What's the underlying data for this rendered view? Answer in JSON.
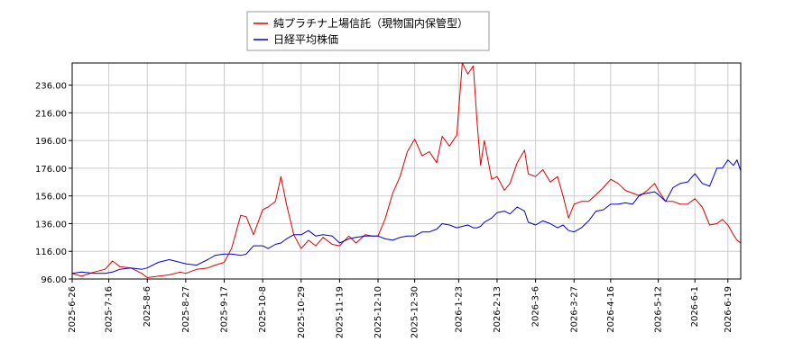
{
  "chart_data": {
    "type": "line",
    "title": "",
    "xlabel": "",
    "ylabel": "",
    "grid": true,
    "legend_position": "top-center",
    "ylim": [
      96,
      252
    ],
    "y_ticks": [
      "96.00",
      "116.00",
      "136.00",
      "156.00",
      "176.00",
      "196.00",
      "216.00",
      "236.00"
    ],
    "x_ticks": [
      "2025-6-26",
      "2025-7-16",
      "2025-8-6",
      "2025-8-27",
      "2025-9-17",
      "2025-10-8",
      "2025-10-29",
      "2025-11-19",
      "2025-12-10",
      "2025-12-30",
      "2026-1-23",
      "2026-2-13",
      "2026-3-6",
      "2026-3-27",
      "2026-4-16",
      "2026-5-12",
      "2026-6-1",
      "2026-6-19"
    ],
    "x_range": [
      "2025-06-26",
      "2026-06-26"
    ],
    "series": [
      {
        "name": "純プラチナ上場信託（現物国内保管型）",
        "color": "#dd0000",
        "points": [
          [
            "2025-06-26",
            100
          ],
          [
            "2025-07-01",
            98
          ],
          [
            "2025-07-08",
            101
          ],
          [
            "2025-07-14",
            103
          ],
          [
            "2025-07-18",
            109
          ],
          [
            "2025-07-22",
            105
          ],
          [
            "2025-07-28",
            104
          ],
          [
            "2025-08-03",
            100
          ],
          [
            "2025-08-06",
            97
          ],
          [
            "2025-08-12",
            98
          ],
          [
            "2025-08-18",
            99
          ],
          [
            "2025-08-24",
            101
          ],
          [
            "2025-08-27",
            100
          ],
          [
            "2025-09-02",
            103
          ],
          [
            "2025-09-08",
            104
          ],
          [
            "2025-09-12",
            106
          ],
          [
            "2025-09-17",
            108
          ],
          [
            "2025-09-21",
            118
          ],
          [
            "2025-09-26",
            142
          ],
          [
            "2025-09-29",
            141
          ],
          [
            "2025-10-03",
            128
          ],
          [
            "2025-10-08",
            146
          ],
          [
            "2025-10-11",
            148
          ],
          [
            "2025-10-15",
            152
          ],
          [
            "2025-10-18",
            170
          ],
          [
            "2025-10-21",
            150
          ],
          [
            "2025-10-25",
            128
          ],
          [
            "2025-10-29",
            118
          ],
          [
            "2025-11-02",
            124
          ],
          [
            "2025-11-06",
            120
          ],
          [
            "2025-11-10",
            126
          ],
          [
            "2025-11-15",
            121
          ],
          [
            "2025-11-19",
            120
          ],
          [
            "2025-11-24",
            127
          ],
          [
            "2025-11-28",
            122
          ],
          [
            "2025-12-03",
            128
          ],
          [
            "2025-12-07",
            127
          ],
          [
            "2025-12-10",
            127
          ],
          [
            "2025-12-14",
            140
          ],
          [
            "2025-12-18",
            158
          ],
          [
            "2025-12-22",
            170
          ],
          [
            "2025-12-26",
            188
          ],
          [
            "2025-12-30",
            197
          ],
          [
            "2026-01-03",
            185
          ],
          [
            "2026-01-07",
            188
          ],
          [
            "2026-01-11",
            180
          ],
          [
            "2026-01-14",
            199
          ],
          [
            "2026-01-18",
            192
          ],
          [
            "2026-01-22",
            200
          ],
          [
            "2026-01-25",
            252
          ],
          [
            "2026-01-28",
            244
          ],
          [
            "2026-01-31",
            250
          ],
          [
            "2026-02-02",
            210
          ],
          [
            "2026-02-04",
            178
          ],
          [
            "2026-02-06",
            196
          ],
          [
            "2026-02-10",
            168
          ],
          [
            "2026-02-13",
            170
          ],
          [
            "2026-02-17",
            160
          ],
          [
            "2026-02-20",
            165
          ],
          [
            "2026-02-24",
            180
          ],
          [
            "2026-02-28",
            189
          ],
          [
            "2026-03-02",
            172
          ],
          [
            "2026-03-06",
            170
          ],
          [
            "2026-03-10",
            175
          ],
          [
            "2026-03-14",
            166
          ],
          [
            "2026-03-18",
            170
          ],
          [
            "2026-03-21",
            156
          ],
          [
            "2026-03-24",
            140
          ],
          [
            "2026-03-27",
            150
          ],
          [
            "2026-03-31",
            152
          ],
          [
            "2026-04-04",
            152
          ],
          [
            "2026-04-08",
            157
          ],
          [
            "2026-04-12",
            162
          ],
          [
            "2026-04-16",
            168
          ],
          [
            "2026-04-20",
            165
          ],
          [
            "2026-04-24",
            160
          ],
          [
            "2026-04-28",
            158
          ],
          [
            "2026-05-02",
            156
          ],
          [
            "2026-05-06",
            160
          ],
          [
            "2026-05-10",
            165
          ],
          [
            "2026-05-12",
            160
          ],
          [
            "2026-05-16",
            152
          ],
          [
            "2026-05-20",
            152
          ],
          [
            "2026-05-24",
            150
          ],
          [
            "2026-05-28",
            150
          ],
          [
            "2026-06-01",
            154
          ],
          [
            "2026-06-05",
            148
          ],
          [
            "2026-06-09",
            135
          ],
          [
            "2026-06-13",
            136
          ],
          [
            "2026-06-16",
            139
          ],
          [
            "2026-06-19",
            135
          ],
          [
            "2026-06-22",
            128
          ],
          [
            "2026-06-24",
            124
          ],
          [
            "2026-06-26",
            122
          ]
        ]
      },
      {
        "name": "日経平均株価",
        "color": "#0000cc",
        "points": [
          [
            "2025-06-26",
            100
          ],
          [
            "2025-07-01",
            101
          ],
          [
            "2025-07-08",
            100
          ],
          [
            "2025-07-14",
            100
          ],
          [
            "2025-07-18",
            101
          ],
          [
            "2025-07-22",
            103
          ],
          [
            "2025-07-28",
            104
          ],
          [
            "2025-08-03",
            103
          ],
          [
            "2025-08-06",
            104
          ],
          [
            "2025-08-12",
            108
          ],
          [
            "2025-08-18",
            110
          ],
          [
            "2025-08-24",
            108
          ],
          [
            "2025-08-27",
            107
          ],
          [
            "2025-09-02",
            106
          ],
          [
            "2025-09-08",
            110
          ],
          [
            "2025-09-12",
            113
          ],
          [
            "2025-09-17",
            114
          ],
          [
            "2025-09-21",
            114
          ],
          [
            "2025-09-26",
            113
          ],
          [
            "2025-09-29",
            114
          ],
          [
            "2025-10-03",
            120
          ],
          [
            "2025-10-08",
            120
          ],
          [
            "2025-10-11",
            118
          ],
          [
            "2025-10-15",
            121
          ],
          [
            "2025-10-18",
            122
          ],
          [
            "2025-10-21",
            125
          ],
          [
            "2025-10-25",
            128
          ],
          [
            "2025-10-29",
            128
          ],
          [
            "2025-11-02",
            131
          ],
          [
            "2025-11-06",
            127
          ],
          [
            "2025-11-10",
            128
          ],
          [
            "2025-11-15",
            127
          ],
          [
            "2025-11-19",
            122
          ],
          [
            "2025-11-24",
            125
          ],
          [
            "2025-11-28",
            126
          ],
          [
            "2025-12-03",
            127
          ],
          [
            "2025-12-07",
            127
          ],
          [
            "2025-12-10",
            127
          ],
          [
            "2025-12-14",
            125
          ],
          [
            "2025-12-18",
            124
          ],
          [
            "2025-12-22",
            126
          ],
          [
            "2025-12-26",
            127
          ],
          [
            "2025-12-30",
            127
          ],
          [
            "2026-01-03",
            130
          ],
          [
            "2026-01-07",
            130
          ],
          [
            "2026-01-11",
            132
          ],
          [
            "2026-01-14",
            136
          ],
          [
            "2026-01-18",
            135
          ],
          [
            "2026-01-22",
            133
          ],
          [
            "2026-01-25",
            134
          ],
          [
            "2026-01-28",
            135
          ],
          [
            "2026-01-31",
            133
          ],
          [
            "2026-02-02",
            133
          ],
          [
            "2026-02-04",
            134
          ],
          [
            "2026-02-06",
            137
          ],
          [
            "2026-02-10",
            140
          ],
          [
            "2026-02-13",
            144
          ],
          [
            "2026-02-17",
            145
          ],
          [
            "2026-02-20",
            143
          ],
          [
            "2026-02-24",
            148
          ],
          [
            "2026-02-28",
            145
          ],
          [
            "2026-03-02",
            137
          ],
          [
            "2026-03-06",
            135
          ],
          [
            "2026-03-10",
            138
          ],
          [
            "2026-03-14",
            136
          ],
          [
            "2026-03-18",
            133
          ],
          [
            "2026-03-21",
            135
          ],
          [
            "2026-03-24",
            131
          ],
          [
            "2026-03-27",
            130
          ],
          [
            "2026-03-31",
            133
          ],
          [
            "2026-04-04",
            138
          ],
          [
            "2026-04-08",
            145
          ],
          [
            "2026-04-12",
            146
          ],
          [
            "2026-04-16",
            150
          ],
          [
            "2026-04-20",
            150
          ],
          [
            "2026-04-24",
            151
          ],
          [
            "2026-04-28",
            150
          ],
          [
            "2026-05-02",
            157
          ],
          [
            "2026-05-06",
            158
          ],
          [
            "2026-05-10",
            159
          ],
          [
            "2026-05-12",
            157
          ],
          [
            "2026-05-16",
            152
          ],
          [
            "2026-05-20",
            162
          ],
          [
            "2026-05-24",
            165
          ],
          [
            "2026-05-28",
            166
          ],
          [
            "2026-06-01",
            172
          ],
          [
            "2026-06-05",
            165
          ],
          [
            "2026-06-09",
            163
          ],
          [
            "2026-06-13",
            176
          ],
          [
            "2026-06-16",
            176
          ],
          [
            "2026-06-19",
            182
          ],
          [
            "2026-06-22",
            178
          ],
          [
            "2026-06-24",
            182
          ],
          [
            "2026-06-26",
            174
          ]
        ]
      }
    ]
  }
}
